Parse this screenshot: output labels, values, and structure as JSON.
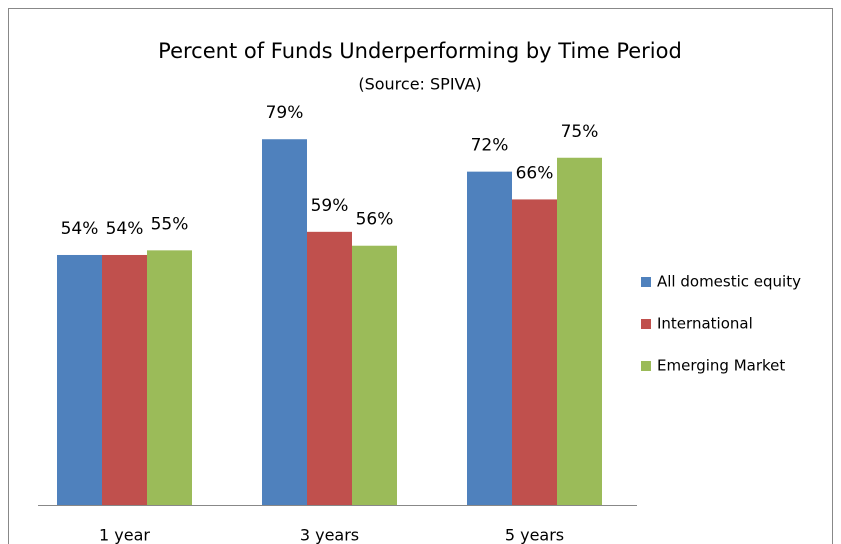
{
  "chart_data": {
    "type": "bar",
    "title": "Percent of Funds Underperforming by Time Period",
    "subtitle": "(Source: SPIVA)",
    "categories": [
      "1 year",
      "3 years",
      "5 years"
    ],
    "series": [
      {
        "name": "All domestic equity",
        "color": "#4f81bd",
        "values": [
          54,
          79,
          72
        ],
        "value_labels": [
          "54%",
          "79%",
          "72%"
        ]
      },
      {
        "name": "International",
        "color": "#c0504d",
        "values": [
          54,
          59,
          66
        ],
        "value_labels": [
          "54%",
          "59%",
          "66%"
        ]
      },
      {
        "name": "Emerging Market",
        "color": "#9bbb59",
        "values": [
          55,
          56,
          75
        ],
        "value_labels": [
          "55%",
          "56%",
          "75%"
        ]
      }
    ],
    "ylim": [
      0,
      100
    ],
    "legend": "right"
  }
}
